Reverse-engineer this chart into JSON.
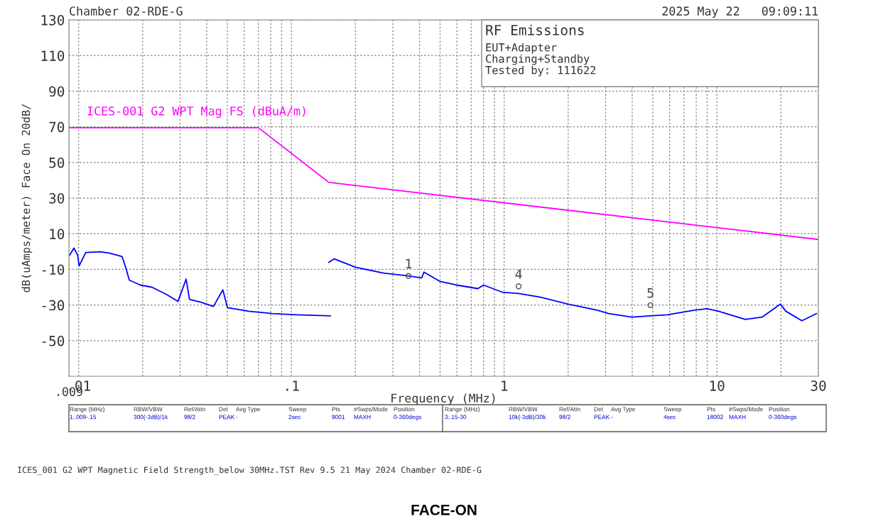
{
  "chart_data": {
    "type": "line",
    "title": "FACE-ON",
    "xlabel": "Frequency (MHz)",
    "ylabel": "dB(uAmps/meter) Face On 20dB/",
    "log": "x",
    "grid": true,
    "legend": false,
    "xlim": [
      0.009,
      30
    ],
    "xticks": [
      {
        "value": 0.009,
        "label": null
      },
      {
        "value": 0.01,
        "label": ".01"
      },
      {
        "value": 0.1,
        "label": ".1"
      },
      1,
      10,
      30
    ],
    "ylim": [
      -70,
      130
    ],
    "yticks": [
      130,
      110,
      90,
      70,
      50,
      30,
      10,
      -10,
      -30,
      -50
    ],
    "series": [
      {
        "name": "ICES-001 G2 WPT Mag FS (dBuA/m)",
        "color": "#ff00ff",
        "x": [
          0.009,
          0.07,
          0.15,
          30
        ],
        "values": [
          69.5,
          69.5,
          38.8,
          6.8
        ]
      },
      {
        "color": "#0000ff",
        "x": [
          0.00907,
          0.0095,
          0.0099,
          0.01005,
          0.0108,
          0.0126,
          0.0139,
          0.016,
          0.0167,
          0.0173,
          0.0195,
          0.0221,
          0.0258,
          0.0293,
          0.032,
          0.0332,
          0.0378,
          0.043,
          0.0476,
          0.0501,
          0.0631,
          0.0814,
          0.1056,
          0.1524
        ],
        "values": [
          -2.1,
          1.9,
          -2,
          -8.1,
          -0.5,
          -0.1,
          -0.8,
          -2.8,
          -9.5,
          -16,
          -18.8,
          -20,
          -24,
          -28,
          -15.5,
          -26.8,
          -28.5,
          -30.8,
          -21.5,
          -31.5,
          -33.5,
          -34.8,
          -35.5,
          -36.1
        ]
      },
      {
        "color": "#0000ff",
        "x": [
          0.15,
          0.159,
          0.2,
          0.271,
          0.355,
          0.41,
          0.42,
          0.5,
          0.597,
          0.753,
          0.8,
          0.98,
          1.17,
          1.47,
          2.0,
          2.72,
          3.1,
          3.98,
          4.87,
          5.84,
          7.94,
          9.0,
          10.2,
          13.6,
          16.3,
          19.9,
          21.1,
          25.1,
          29.4
        ],
        "values": [
          -6.1,
          -4.1,
          -8.8,
          -12.1,
          -13.7,
          -14.8,
          -11.5,
          -16.8,
          -18.8,
          -20.8,
          -18.8,
          -22.8,
          -23.5,
          -25.5,
          -29.5,
          -32.8,
          -34.8,
          -36.8,
          -36.1,
          -35.5,
          -32.8,
          -32.1,
          -33.5,
          -38.1,
          -36.8,
          -29.5,
          -33.5,
          -38.8,
          -34.8
        ]
      }
    ],
    "annotations": [
      "Chamber 02-RDE-G",
      "2025 May 22   09:09:11",
      "RF Emissions",
      "EUT+Adapter",
      "Charging+Standby",
      "Tested by: 111622",
      ".009",
      "Range (MHz)",
      "RBW/VBW",
      "Ref/Attn",
      "Det",
      "Avg Type",
      "Sweep",
      "Pts",
      "#Swps/Mode",
      "Position",
      "1:.009-.15",
      "300(-3dB)/1k",
      "98/2",
      "PEAK",
      "-",
      "2sec",
      "9001",
      "MAXH",
      "0-360degs",
      "Range (MHz)",
      "RBW/VBW",
      "Ref/Attn",
      "Det",
      "Avg Type",
      "Sweep",
      "Pts",
      "#Swps/Mode",
      "Position",
      "3:.15-30",
      "10k(-3dB)/30k",
      "98/2",
      "PEAK",
      "-",
      "4sec",
      "18002",
      "MAXH",
      "0-360degs",
      "ICES_001 G2 WPT Magnetic Field Strength_below 30MHz.TST Rev 9.5 21 May 2024 Chamber 02-RDE-G",
      {
        "text": "1",
        "x": 0.355,
        "y": -13.7
      },
      {
        "text": "4",
        "x": 1.17,
        "y": -19.5
      },
      {
        "text": "5",
        "x": 4.87,
        "y": -30.1
      }
    ]
  }
}
